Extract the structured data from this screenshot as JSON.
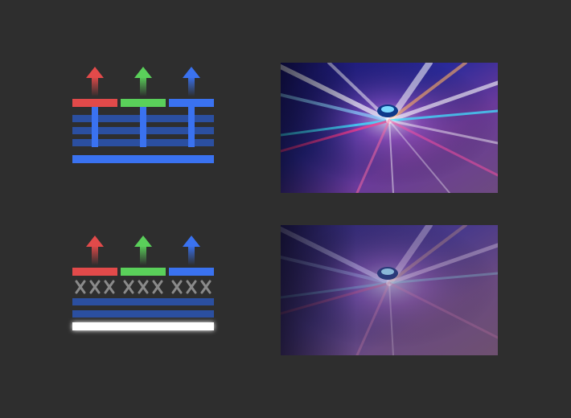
{
  "colors": {
    "background": "#2e2e2e",
    "red": "#e24a4a",
    "green": "#5ad05a",
    "blue": "#3a72f0",
    "layer_navy": "#2b4fa0",
    "backlight_white": "#ffffff",
    "blocker_gray": "#8a8a8a"
  },
  "diagrams": [
    {
      "name": "top-diagram",
      "light_paths": "open",
      "backlight": "blue-layer"
    },
    {
      "name": "bottom-diagram",
      "light_paths": "blocked",
      "backlight": "white-glow"
    }
  ],
  "images": [
    {
      "name": "motion-blur-photo-vivid",
      "style": "high-contrast"
    },
    {
      "name": "motion-blur-photo-washed",
      "style": "low-contrast"
    }
  ]
}
